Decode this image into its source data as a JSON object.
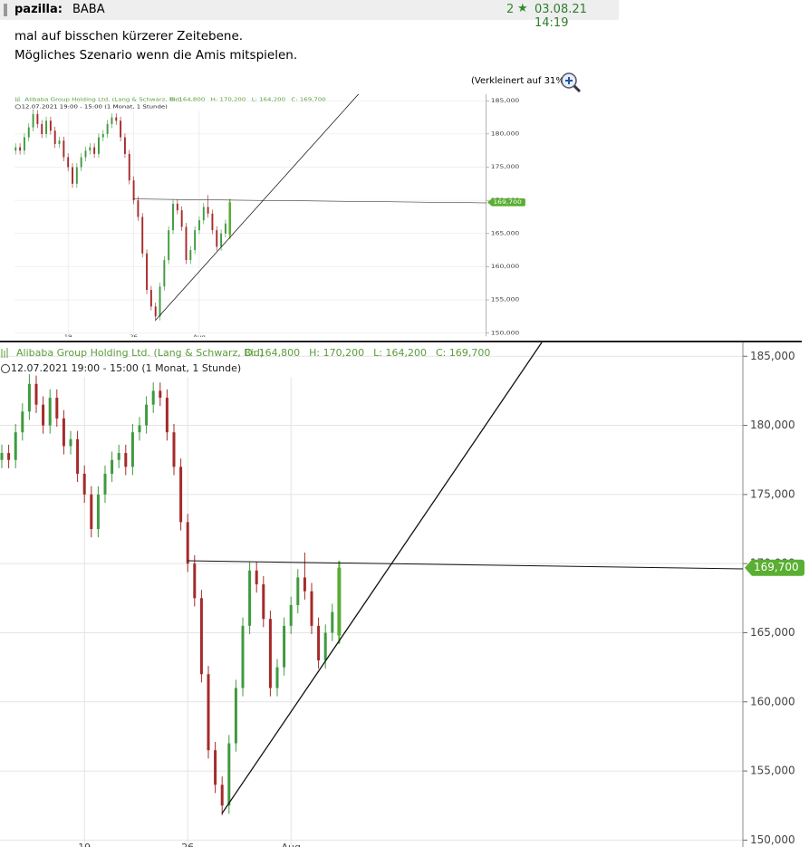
{
  "post": {
    "user": "pazilla:",
    "topic": "BABA",
    "rating": "2",
    "date": "03.08.21 14:19",
    "body": [
      "mal auf bisschen kürzerer Zeitebene.",
      "Mögliches Szenario wenn die Amis mitspielen."
    ],
    "zoom_note": "(Verkleinert auf 31%)"
  },
  "chart_data": {
    "type": "candlestick",
    "title": "Alibaba Group Holding Ltd. (Lang & Schwarz, Bid)",
    "info_labels": [
      "O: 164,800",
      "H: 170,200",
      "L: 164,200",
      "C: 169,700"
    ],
    "subtitle": "12.07.2021 19:00 - 15:00   (1 Monat, 1 Stunde)",
    "categories": [
      null,
      null,
      null,
      null,
      null,
      null,
      null,
      null,
      null,
      null,
      null,
      null,
      "19",
      null,
      null,
      null,
      null,
      null,
      null,
      null,
      null,
      null,
      null,
      null,
      null,
      null,
      null,
      "26",
      null,
      null,
      null,
      null,
      null,
      null,
      null,
      null,
      null,
      null,
      null,
      null,
      null,
      null,
      "Aug",
      null,
      null,
      null,
      null,
      null,
      null,
      null
    ],
    "open": [
      177500,
      178000,
      177500,
      179500,
      181000,
      183000,
      181500,
      180000,
      182000,
      180500,
      178500,
      179000,
      176500,
      175000,
      172500,
      175000,
      176500,
      177500,
      178000,
      177000,
      179500,
      180000,
      181500,
      182500,
      182000,
      179500,
      177000,
      173000,
      170000,
      167500,
      162000,
      156500,
      154000,
      152500,
      157000,
      161000,
      165500,
      169500,
      168500,
      166000,
      161000,
      162500,
      165500,
      167000,
      169000,
      168000,
      165500,
      163000,
      165000,
      164800
    ],
    "high": [
      178600,
      178600,
      180100,
      181600,
      183700,
      183600,
      182100,
      182600,
      182600,
      181100,
      179600,
      179600,
      177100,
      175600,
      175600,
      177100,
      178100,
      178600,
      178600,
      180100,
      180600,
      182100,
      183100,
      183100,
      182600,
      180100,
      177600,
      173600,
      170600,
      168100,
      162600,
      157100,
      154600,
      157600,
      161600,
      166100,
      170100,
      170100,
      169100,
      166600,
      163100,
      166100,
      167600,
      169600,
      170800,
      168600,
      166100,
      165600,
      167100,
      170200
    ],
    "low": [
      176900,
      176900,
      176900,
      178900,
      180400,
      180900,
      179400,
      179400,
      179900,
      177900,
      177900,
      175900,
      174400,
      171900,
      171900,
      174400,
      175900,
      176900,
      176400,
      176400,
      178900,
      179400,
      180900,
      181400,
      178900,
      176400,
      172400,
      169400,
      166900,
      161400,
      155900,
      153400,
      151800,
      151900,
      156400,
      160400,
      164900,
      167900,
      165400,
      160400,
      160400,
      161900,
      164900,
      166400,
      167400,
      164900,
      162400,
      162400,
      164400,
      164200
    ],
    "close": [
      178000,
      177500,
      179500,
      181000,
      183000,
      181500,
      180000,
      182000,
      180500,
      178500,
      179000,
      176500,
      175000,
      172500,
      175000,
      176500,
      177500,
      178000,
      177000,
      179500,
      180000,
      181500,
      182500,
      182000,
      179500,
      177000,
      173000,
      170000,
      167500,
      162000,
      156500,
      154000,
      152500,
      157000,
      161000,
      165500,
      169500,
      168500,
      166000,
      161000,
      162500,
      165500,
      167000,
      169000,
      168000,
      165500,
      163000,
      165000,
      166500,
      169700
    ],
    "last_value_label": "169,700",
    "up_color": "#3f9a3f",
    "down_color": "#a52a2a",
    "last_color": "#5aae32",
    "ylim": [
      149500,
      186000
    ],
    "yticks": [
      {
        "value": 150000,
        "label": "150,000"
      },
      {
        "value": 155000,
        "label": "155,000"
      },
      {
        "value": 160000,
        "label": "160,000"
      },
      {
        "value": 165000,
        "label": "165,000"
      },
      {
        "value": 170000,
        "label": "170,000"
      },
      {
        "value": 175000,
        "label": "175,000"
      },
      {
        "value": 180000,
        "label": "180,000"
      },
      {
        "value": 185000,
        "label": "185,000"
      }
    ],
    "grid": true
  }
}
